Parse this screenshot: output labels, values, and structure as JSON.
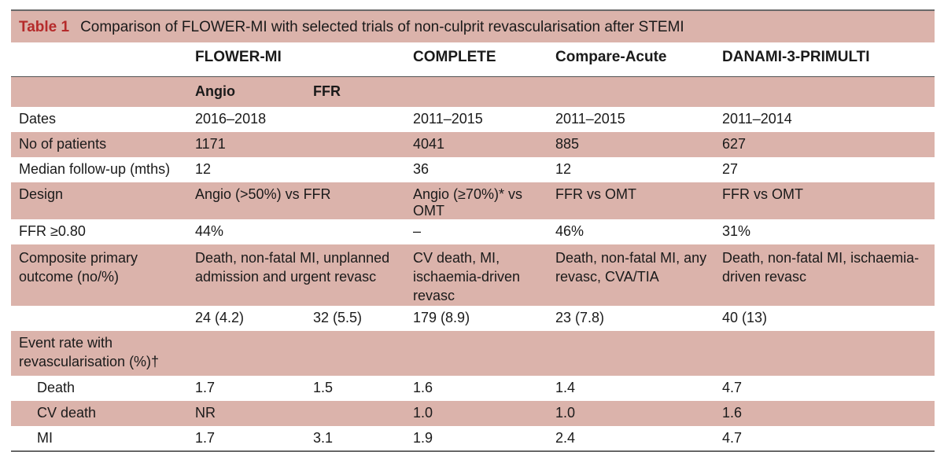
{
  "caption": {
    "label": "Table 1",
    "title": "Comparison of FLOWER-MI with selected trials of non-culprit revascularisation after STEMI"
  },
  "header": {
    "c0": "",
    "flower": "FLOWER-MI",
    "complete": "COMPLETE",
    "compare": "Compare-Acute",
    "danami": "DANAMI-3-PRIMULTI"
  },
  "subheader": {
    "angio": "Angio",
    "ffr": "FFR"
  },
  "rows": {
    "dates": {
      "label": "Dates",
      "flower": "2016–2018",
      "complete": "2011–2015",
      "compare": "2011–2015",
      "danami": "2011–2014"
    },
    "patients": {
      "label": "No of patients",
      "flower": "1171",
      "complete": "4041",
      "compare": "885",
      "danami": "627"
    },
    "followup": {
      "label": "Median follow-up (mths)",
      "flower": "12",
      "complete": "36",
      "compare": "12",
      "danami": "27"
    },
    "design": {
      "label": "Design",
      "flower": "Angio (>50%) vs FFR",
      "complete": "Angio (≥70%)* vs OMT",
      "compare": "FFR vs OMT",
      "danami": "FFR vs OMT"
    },
    "ffr": {
      "label": "FFR ≥0.80",
      "flower": "44%",
      "complete": "–",
      "compare": "46%",
      "danami": "31%"
    },
    "composite": {
      "label": "Composite primary outcome (no/%)",
      "flower": "Death, non-fatal MI, unplanned admission and urgent revasc",
      "complete": "CV death, MI, ischaemia-driven revasc",
      "compare": "Death, non-fatal MI, any revasc, CVA/TIA",
      "danami": "Death, non-fatal MI, ischaemia-driven revasc"
    },
    "composite_values": {
      "angio": "24 (4.2)",
      "ffr": "32 (5.5)",
      "complete": "179 (8.9)",
      "compare": "23 (7.8)",
      "danami": "40 (13)"
    },
    "event_rate": {
      "label": "Event rate with revascularisation (%)†"
    },
    "death": {
      "label": "Death",
      "angio": "1.7",
      "ffr": "1.5",
      "complete": "1.6",
      "compare": "1.4",
      "danami": "4.7"
    },
    "cvdeath": {
      "label": "CV death",
      "angio": "NR",
      "ffr": "",
      "complete": "1.0",
      "compare": "1.0",
      "danami": "1.6"
    },
    "mi": {
      "label": "MI",
      "angio": "1.7",
      "ffr": "3.1",
      "complete": "1.9",
      "compare": "2.4",
      "danami": "4.7"
    }
  },
  "colors": {
    "shade": "#dbb3ab",
    "caption_label": "#b52a2a"
  }
}
